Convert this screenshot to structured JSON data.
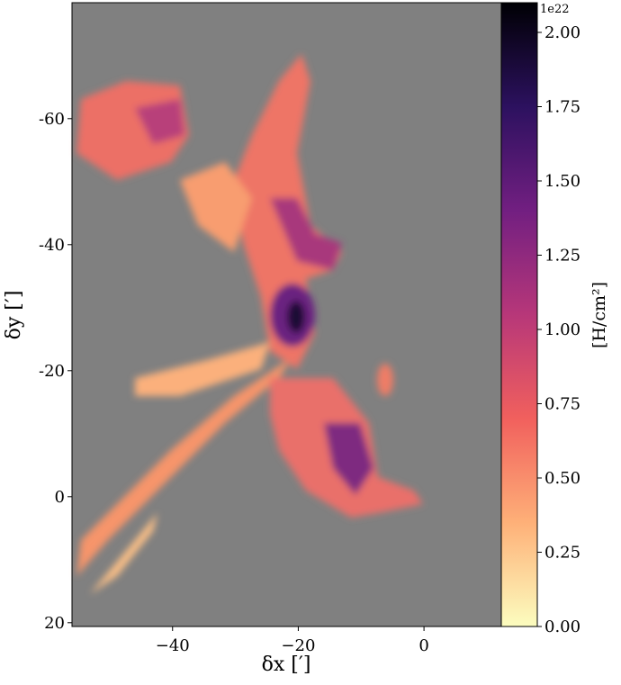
{
  "chart_data": {
    "type": "heatmap",
    "x_label": "δx [′]",
    "y_label": "δy [′]",
    "xlim": [
      -56,
      12.3
    ],
    "ylim": [
      20.6,
      -78.4
    ],
    "xticks": [
      {
        "value": -40,
        "label": "−40"
      },
      {
        "value": -20,
        "label": "−20"
      },
      0
    ],
    "yticks": [
      -60,
      -40,
      -20,
      0,
      20
    ],
    "background": "#808080",
    "colorbar": {
      "label": "[H/cm²]",
      "offset_label": "1e22",
      "lim": [
        0,
        2.1
      ],
      "ticks": [
        {
          "value": 0,
          "label": "0.00"
        },
        {
          "value": 0.25,
          "label": "0.25"
        },
        {
          "value": 0.5,
          "label": "0.50"
        },
        {
          "value": 0.75,
          "label": "0.75"
        },
        {
          "value": 1,
          "label": "1.00"
        },
        {
          "value": 1.25,
          "label": "1.25"
        },
        {
          "value": 1.5,
          "label": "1.50"
        },
        {
          "value": 1.75,
          "label": "1.75"
        },
        {
          "value": 2,
          "label": "2.00"
        }
      ],
      "colors": [
        "#fcfdbf",
        "#feb078",
        "#f1605d",
        "#b73779",
        "#721f81",
        "#2c115f",
        "#000004"
      ]
    }
  }
}
